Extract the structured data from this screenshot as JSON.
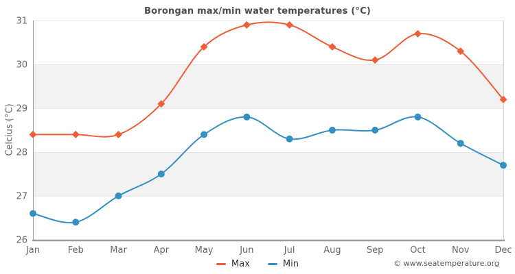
{
  "chart_data": {
    "type": "line",
    "title": "Borongan max/min water temperatures (°C)",
    "ylabel": "Celcius (°C)",
    "xlabel": "",
    "categories": [
      "Jan",
      "Feb",
      "Mar",
      "Apr",
      "May",
      "Jun",
      "Jul",
      "Aug",
      "Sep",
      "Oct",
      "Nov",
      "Dec"
    ],
    "series": [
      {
        "name": "Max",
        "marker": "diamond",
        "color": "#ee5f38",
        "values": [
          28.4,
          28.4,
          28.4,
          29.1,
          30.4,
          30.9,
          30.9,
          30.4,
          30.1,
          30.7,
          30.3,
          29.2
        ]
      },
      {
        "name": "Min",
        "marker": "circle",
        "color": "#3390c3",
        "values": [
          26.6,
          26.4,
          27.0,
          27.5,
          28.4,
          28.8,
          28.3,
          28.5,
          28.5,
          28.8,
          28.2,
          27.7
        ]
      }
    ],
    "ylim": [
      26,
      31
    ],
    "yticks": [
      26,
      27,
      28,
      29,
      30,
      31
    ],
    "band_ranges": [
      [
        27,
        28
      ],
      [
        29,
        30
      ]
    ],
    "band_color": "#f2f2f2",
    "grid_color": "#e6e6e6",
    "border_color": "#d4d4d4",
    "axis_color": "#9e9e9e",
    "tick_label_color": "#666666",
    "grid": true,
    "legend_position": "bottom"
  },
  "footer": {
    "copyright": "© www.seatemperature.org"
  }
}
